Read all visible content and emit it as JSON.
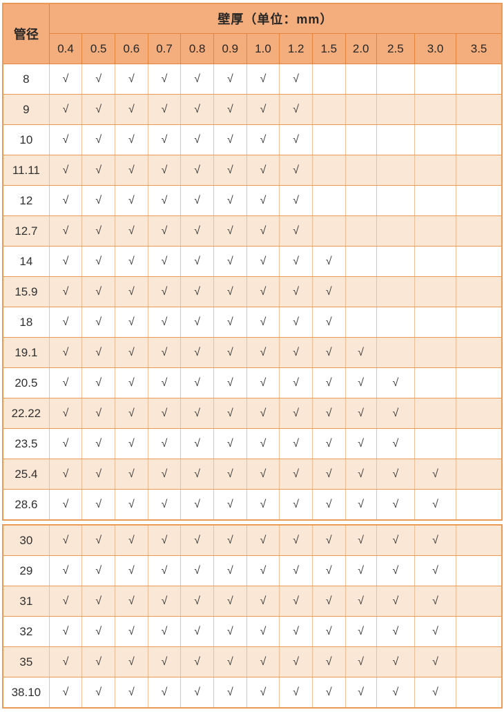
{
  "colors": {
    "header_bg": "#F4AE7D",
    "row_alt_bg": "#FBE7D6",
    "row_bg": "#FFFFFF",
    "grid_border": "#E99751",
    "grid_border_vertical": "#F0BE92",
    "header_border": "#E5823C",
    "outer_border": "#EB9A55",
    "text": "#303030"
  },
  "table": {
    "corner_header": "管径",
    "group_header": "壁厚（单位：mm）",
    "thickness_columns": [
      "0.4",
      "0.5",
      "0.6",
      "0.7",
      "0.8",
      "0.9",
      "1.0",
      "1.2",
      "1.5",
      "2.0",
      "2.5",
      "3.0",
      "3.5"
    ],
    "check_symbol": "√",
    "sections": [
      {
        "name": "upper",
        "rows": [
          {
            "diameter": "8",
            "shaded": false,
            "checks": [
              1,
              1,
              1,
              1,
              1,
              1,
              1,
              1,
              0,
              0,
              0,
              0,
              0
            ]
          },
          {
            "diameter": "9",
            "shaded": true,
            "checks": [
              1,
              1,
              1,
              1,
              1,
              1,
              1,
              1,
              0,
              0,
              0,
              0,
              0
            ]
          },
          {
            "diameter": "10",
            "shaded": false,
            "checks": [
              1,
              1,
              1,
              1,
              1,
              1,
              1,
              1,
              0,
              0,
              0,
              0,
              0
            ]
          },
          {
            "diameter": "11.11",
            "shaded": true,
            "checks": [
              1,
              1,
              1,
              1,
              1,
              1,
              1,
              1,
              0,
              0,
              0,
              0,
              0
            ]
          },
          {
            "diameter": "12",
            "shaded": false,
            "checks": [
              1,
              1,
              1,
              1,
              1,
              1,
              1,
              1,
              0,
              0,
              0,
              0,
              0
            ]
          },
          {
            "diameter": "12.7",
            "shaded": true,
            "checks": [
              1,
              1,
              1,
              1,
              1,
              1,
              1,
              1,
              0,
              0,
              0,
              0,
              0
            ]
          },
          {
            "diameter": "14",
            "shaded": false,
            "checks": [
              1,
              1,
              1,
              1,
              1,
              1,
              1,
              1,
              1,
              0,
              0,
              0,
              0
            ]
          },
          {
            "diameter": "15.9",
            "shaded": true,
            "checks": [
              1,
              1,
              1,
              1,
              1,
              1,
              1,
              1,
              1,
              0,
              0,
              0,
              0
            ]
          },
          {
            "diameter": "18",
            "shaded": false,
            "checks": [
              1,
              1,
              1,
              1,
              1,
              1,
              1,
              1,
              1,
              0,
              0,
              0,
              0
            ]
          },
          {
            "diameter": "19.1",
            "shaded": true,
            "checks": [
              1,
              1,
              1,
              1,
              1,
              1,
              1,
              1,
              1,
              1,
              0,
              0,
              0
            ]
          },
          {
            "diameter": "20.5",
            "shaded": false,
            "checks": [
              1,
              1,
              1,
              1,
              1,
              1,
              1,
              1,
              1,
              1,
              1,
              0,
              0
            ]
          },
          {
            "diameter": "22.22",
            "shaded": true,
            "checks": [
              1,
              1,
              1,
              1,
              1,
              1,
              1,
              1,
              1,
              1,
              1,
              0,
              0
            ]
          },
          {
            "diameter": "23.5",
            "shaded": false,
            "checks": [
              1,
              1,
              1,
              1,
              1,
              1,
              1,
              1,
              1,
              1,
              1,
              0,
              0
            ]
          },
          {
            "diameter": "25.4",
            "shaded": true,
            "checks": [
              1,
              1,
              1,
              1,
              1,
              1,
              1,
              1,
              1,
              1,
              1,
              1,
              0
            ]
          },
          {
            "diameter": "28.6",
            "shaded": false,
            "checks": [
              1,
              1,
              1,
              1,
              1,
              1,
              1,
              1,
              1,
              1,
              1,
              1,
              0
            ]
          }
        ]
      },
      {
        "name": "lower",
        "rows": [
          {
            "diameter": "30",
            "shaded": true,
            "checks": [
              1,
              1,
              1,
              1,
              1,
              1,
              1,
              1,
              1,
              1,
              1,
              1,
              0
            ]
          },
          {
            "diameter": "29",
            "shaded": false,
            "checks": [
              1,
              1,
              1,
              1,
              1,
              1,
              1,
              1,
              1,
              1,
              1,
              1,
              0
            ]
          },
          {
            "diameter": "31",
            "shaded": true,
            "checks": [
              1,
              1,
              1,
              1,
              1,
              1,
              1,
              1,
              1,
              1,
              1,
              1,
              0
            ]
          },
          {
            "diameter": "32",
            "shaded": false,
            "checks": [
              1,
              1,
              1,
              1,
              1,
              1,
              1,
              1,
              1,
              1,
              1,
              1,
              0
            ]
          },
          {
            "diameter": "35",
            "shaded": true,
            "checks": [
              1,
              1,
              1,
              1,
              1,
              1,
              1,
              1,
              1,
              1,
              1,
              1,
              0
            ]
          },
          {
            "diameter": "38.10",
            "shaded": false,
            "checks": [
              1,
              1,
              1,
              1,
              1,
              1,
              1,
              1,
              1,
              1,
              1,
              1,
              0
            ]
          }
        ]
      }
    ]
  }
}
